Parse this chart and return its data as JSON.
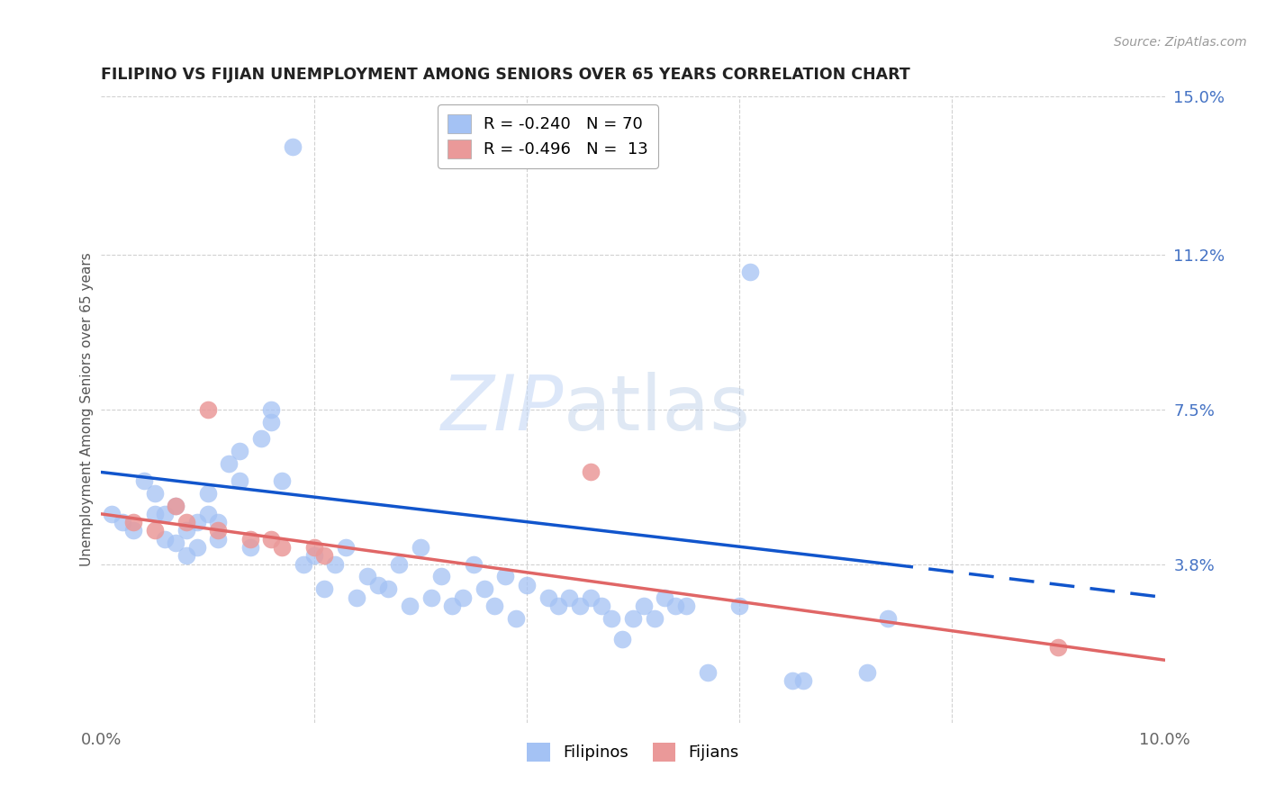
{
  "title": "FILIPINO VS FIJIAN UNEMPLOYMENT AMONG SENIORS OVER 65 YEARS CORRELATION CHART",
  "source": "Source: ZipAtlas.com",
  "ylabel": "Unemployment Among Seniors over 65 years",
  "xlim": [
    0.0,
    0.1
  ],
  "ylim": [
    0.0,
    0.15
  ],
  "filipino_color": "#a4c2f4",
  "fijian_color": "#ea9999",
  "trendline_filipino_color": "#1155cc",
  "trendline_fijian_color": "#e06666",
  "watermark_zip": "ZIP",
  "watermark_atlas": "atlas",
  "legend_filipino_R": "-0.240",
  "legend_filipino_N": "70",
  "legend_fijian_R": "-0.496",
  "legend_fijian_N": "13",
  "background_color": "#ffffff",
  "grid_color": "#cccccc",
  "filipino_x": [
    0.001,
    0.002,
    0.003,
    0.004,
    0.005,
    0.005,
    0.006,
    0.006,
    0.007,
    0.007,
    0.008,
    0.008,
    0.009,
    0.009,
    0.01,
    0.01,
    0.011,
    0.011,
    0.012,
    0.013,
    0.013,
    0.014,
    0.015,
    0.016,
    0.016,
    0.017,
    0.018,
    0.019,
    0.02,
    0.021,
    0.022,
    0.023,
    0.024,
    0.025,
    0.026,
    0.027,
    0.028,
    0.029,
    0.03,
    0.031,
    0.032,
    0.033,
    0.034,
    0.035,
    0.036,
    0.037,
    0.038,
    0.039,
    0.04,
    0.042,
    0.043,
    0.044,
    0.045,
    0.046,
    0.047,
    0.048,
    0.049,
    0.05,
    0.051,
    0.052,
    0.053,
    0.054,
    0.055,
    0.057,
    0.06,
    0.061,
    0.065,
    0.066,
    0.072,
    0.074
  ],
  "filipino_y": [
    0.05,
    0.048,
    0.046,
    0.058,
    0.05,
    0.055,
    0.044,
    0.05,
    0.043,
    0.052,
    0.04,
    0.046,
    0.042,
    0.048,
    0.05,
    0.055,
    0.048,
    0.044,
    0.062,
    0.058,
    0.065,
    0.042,
    0.068,
    0.075,
    0.072,
    0.058,
    0.138,
    0.038,
    0.04,
    0.032,
    0.038,
    0.042,
    0.03,
    0.035,
    0.033,
    0.032,
    0.038,
    0.028,
    0.042,
    0.03,
    0.035,
    0.028,
    0.03,
    0.038,
    0.032,
    0.028,
    0.035,
    0.025,
    0.033,
    0.03,
    0.028,
    0.03,
    0.028,
    0.03,
    0.028,
    0.025,
    0.02,
    0.025,
    0.028,
    0.025,
    0.03,
    0.028,
    0.028,
    0.012,
    0.028,
    0.108,
    0.01,
    0.01,
    0.012,
    0.025
  ],
  "fijian_x": [
    0.003,
    0.005,
    0.007,
    0.008,
    0.01,
    0.011,
    0.014,
    0.016,
    0.017,
    0.02,
    0.021,
    0.046,
    0.09
  ],
  "fijian_y": [
    0.048,
    0.046,
    0.052,
    0.048,
    0.075,
    0.046,
    0.044,
    0.044,
    0.042,
    0.042,
    0.04,
    0.06,
    0.018
  ],
  "trend_fil_x0": 0.0,
  "trend_fil_y0": 0.06,
  "trend_fil_x1": 0.074,
  "trend_fil_y1": 0.038,
  "trend_fil_dash_x0": 0.074,
  "trend_fil_dash_y0": 0.038,
  "trend_fil_dash_x1": 0.1,
  "trend_fil_dash_y1": 0.03,
  "trend_fij_x0": 0.0,
  "trend_fij_y0": 0.05,
  "trend_fij_x1": 0.1,
  "trend_fij_y1": 0.015
}
